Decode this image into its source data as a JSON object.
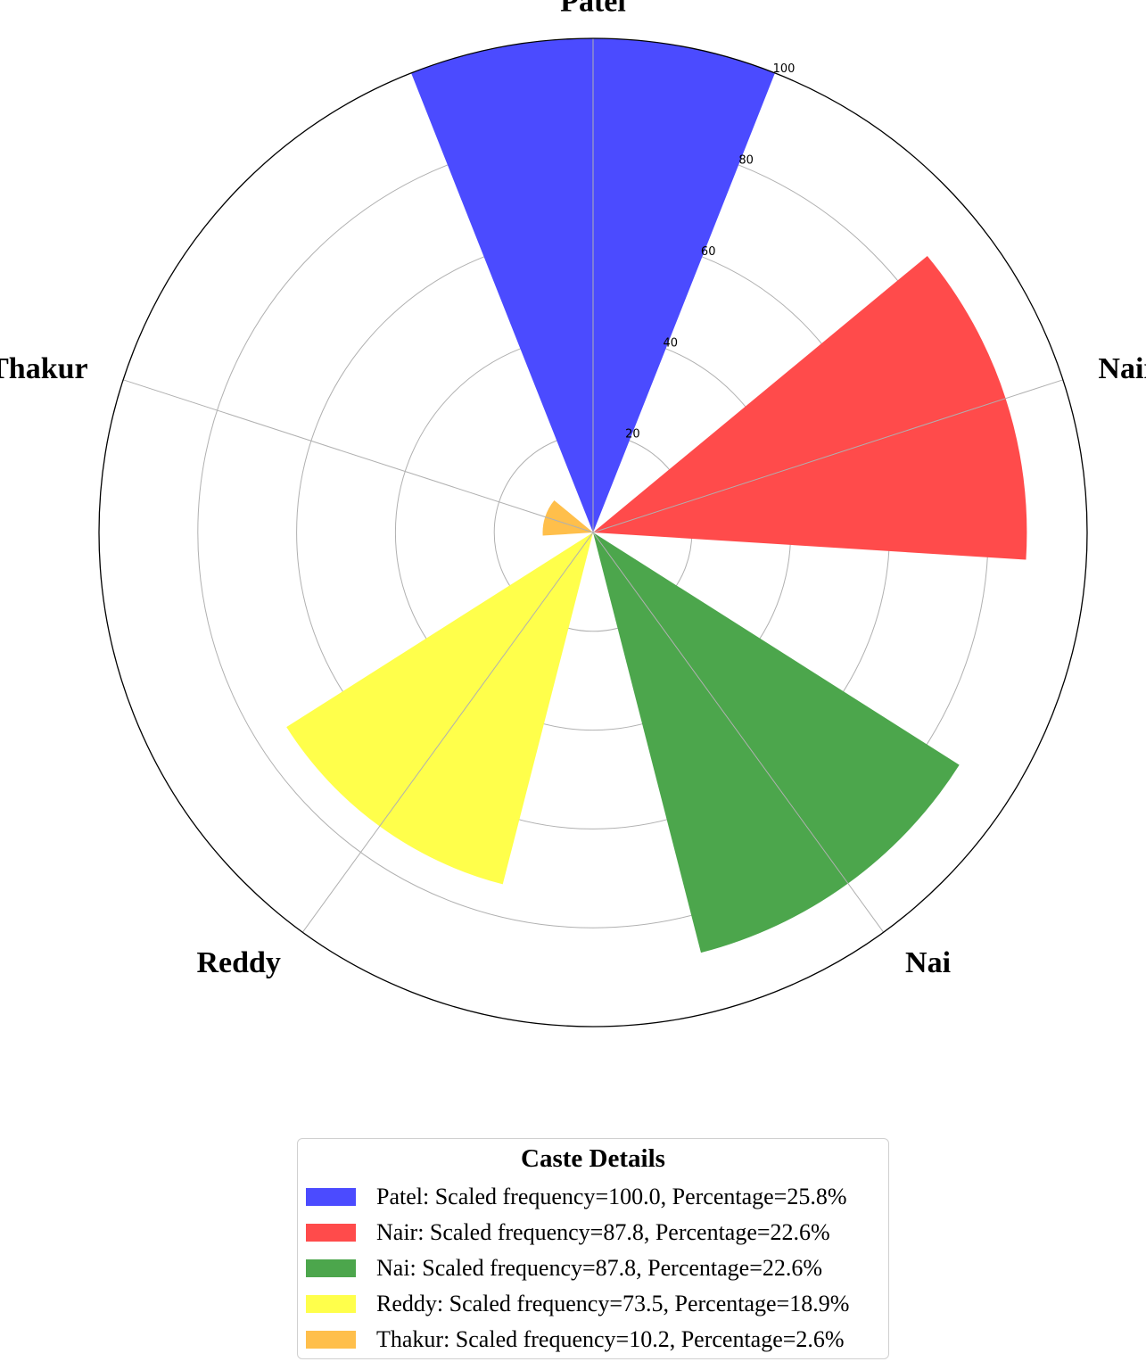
{
  "chart_data": {
    "type": "polar-bar",
    "categories": [
      "Patel",
      "Nair",
      "Nai",
      "Reddy",
      "Thakur"
    ],
    "values": [
      100.0,
      87.8,
      87.8,
      73.5,
      10.2
    ],
    "percentages": [
      25.8,
      22.6,
      22.6,
      18.9,
      2.6
    ],
    "colors": [
      "#4b4bff",
      "#ff4b4b",
      "#4ca64c",
      "#ffff4b",
      "#ffbf4b"
    ],
    "rlim": [
      0,
      100
    ],
    "rticks": [
      "20",
      "40",
      "60",
      "80",
      "100"
    ],
    "rtick_values": [
      20,
      40,
      60,
      80,
      100
    ],
    "grid": true,
    "legend": {
      "title": "Caste Details",
      "placement": "bottom-center",
      "entries": [
        "Patel: Scaled frequency=100.0, Percentage=25.8%",
        "Nair: Scaled frequency=87.8, Percentage=22.6%",
        "Nai: Scaled frequency=87.8, Percentage=22.6%",
        "Reddy: Scaled frequency=73.5, Percentage=18.9%",
        "Thakur: Scaled frequency=10.2, Percentage=2.6%"
      ]
    }
  }
}
